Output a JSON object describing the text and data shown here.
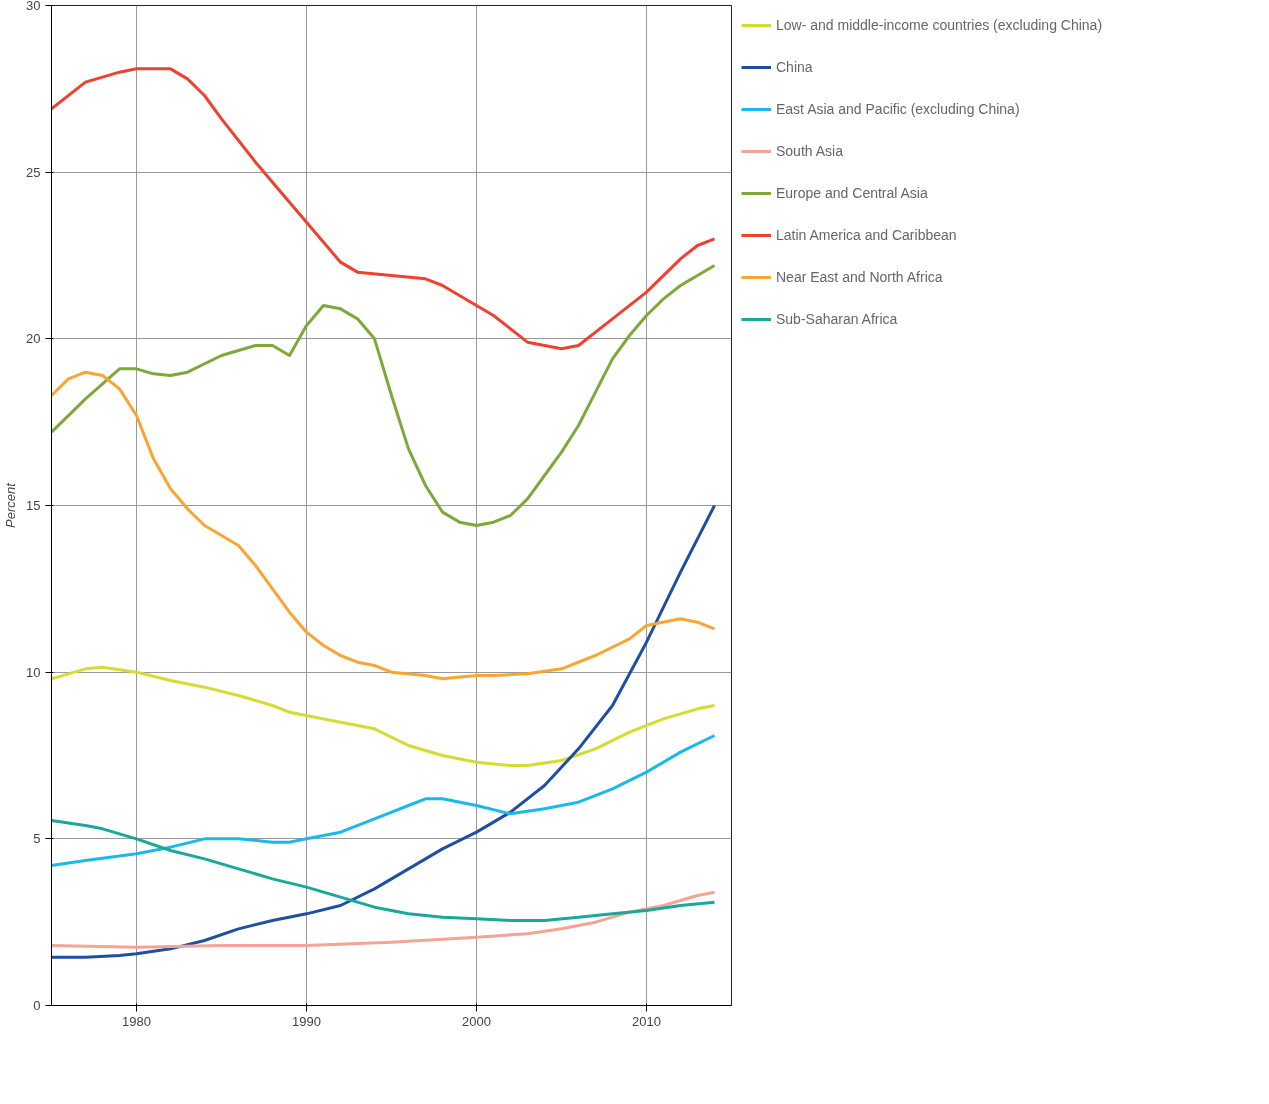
{
  "chart_data": {
    "type": "line",
    "ylabel": "Percent",
    "xlim": [
      1975,
      2015
    ],
    "ylim": [
      0,
      30
    ],
    "xticks": [
      1980,
      1990,
      2000,
      2010
    ],
    "yticks": [
      0,
      5,
      10,
      15,
      20,
      25,
      30
    ],
    "grid": true,
    "legend": "right",
    "line_style": "solid",
    "series": [
      {
        "name": "Low- and middle-income countries (excluding China)",
        "color": "#d4dc32",
        "x": [
          1975,
          1977,
          1978,
          1980,
          1982,
          1984,
          1986,
          1988,
          1989,
          1990,
          1992,
          1994,
          1996,
          1998,
          2000,
          2002,
          2003,
          2005,
          2007,
          2009,
          2011,
          2013,
          2014
        ],
        "values": [
          9.8,
          10.1,
          10.15,
          10.0,
          9.75,
          9.55,
          9.3,
          9.0,
          8.8,
          8.7,
          8.5,
          8.3,
          7.8,
          7.5,
          7.3,
          7.2,
          7.2,
          7.35,
          7.7,
          8.2,
          8.6,
          8.9,
          9.0
        ]
      },
      {
        "name": "China",
        "color": "#1f4fa0",
        "x": [
          1975,
          1977,
          1979,
          1980,
          1982,
          1984,
          1986,
          1988,
          1990,
          1992,
          1994,
          1996,
          1998,
          2000,
          2002,
          2004,
          2006,
          2008,
          2010,
          2012,
          2014
        ],
        "values": [
          1.45,
          1.45,
          1.5,
          1.55,
          1.7,
          1.95,
          2.3,
          2.55,
          2.75,
          3.0,
          3.5,
          4.1,
          4.7,
          5.2,
          5.8,
          6.6,
          7.7,
          9.0,
          10.9,
          13.0,
          15.0
        ]
      },
      {
        "name": "East Asia and Pacific (excluding China)",
        "color": "#1bb8ee",
        "x": [
          1975,
          1977,
          1980,
          1982,
          1984,
          1986,
          1988,
          1989,
          1990,
          1992,
          1994,
          1996,
          1997,
          1998,
          2000,
          2002,
          2004,
          2006,
          2008,
          2010,
          2012,
          2014
        ],
        "values": [
          4.2,
          4.35,
          4.55,
          4.75,
          5.0,
          5.0,
          4.9,
          4.9,
          5.0,
          5.2,
          5.6,
          6.0,
          6.2,
          6.2,
          6.0,
          5.75,
          5.9,
          6.1,
          6.5,
          7.0,
          7.6,
          8.1
        ]
      },
      {
        "name": "South Asia",
        "color": "#f4a494",
        "x": [
          1975,
          1980,
          1985,
          1990,
          1995,
          2000,
          2003,
          2005,
          2007,
          2009,
          2011,
          2013,
          2014
        ],
        "values": [
          1.8,
          1.75,
          1.8,
          1.8,
          1.9,
          2.05,
          2.15,
          2.3,
          2.5,
          2.8,
          3.0,
          3.3,
          3.4
        ]
      },
      {
        "name": "Europe and Central Asia",
        "color": "#7fa83a",
        "x": [
          1975,
          1977,
          1979,
          1980,
          1981,
          1982,
          1983,
          1985,
          1987,
          1988,
          1989,
          1990,
          1991,
          1992,
          1993,
          1994,
          1995,
          1996,
          1997,
          1998,
          1999,
          2000,
          2001,
          2002,
          2003,
          2004,
          2005,
          2006,
          2007,
          2008,
          2009,
          2010,
          2011,
          2012,
          2013,
          2014
        ],
        "values": [
          17.2,
          18.2,
          19.1,
          19.1,
          18.95,
          18.9,
          19.0,
          19.5,
          19.8,
          19.8,
          19.5,
          20.4,
          21.0,
          20.9,
          20.6,
          20.0,
          18.3,
          16.7,
          15.6,
          14.8,
          14.5,
          14.4,
          14.5,
          14.7,
          15.2,
          15.9,
          16.6,
          17.4,
          18.4,
          19.4,
          20.1,
          20.7,
          21.2,
          21.6,
          21.9,
          22.2
        ]
      },
      {
        "name": "Latin America and Caribbean",
        "color": "#ef4130",
        "x": [
          1975,
          1977,
          1979,
          1980,
          1982,
          1983,
          1984,
          1985,
          1987,
          1989,
          1990,
          1992,
          1993,
          1995,
          1997,
          1998,
          2000,
          2001,
          2003,
          2005,
          2006,
          2008,
          2010,
          2012,
          2013,
          2014
        ],
        "values": [
          26.9,
          27.7,
          28.0,
          28.1,
          28.1,
          27.8,
          27.3,
          26.6,
          25.3,
          24.1,
          23.5,
          22.3,
          22.0,
          21.9,
          21.8,
          21.6,
          21.0,
          20.7,
          19.9,
          19.7,
          19.8,
          20.6,
          21.4,
          22.4,
          22.8,
          23.0
        ]
      },
      {
        "name": "Near East and North Africa",
        "color": "#f9a533",
        "x": [
          1975,
          1976,
          1977,
          1978,
          1979,
          1980,
          1981,
          1982,
          1983,
          1984,
          1986,
          1987,
          1988,
          1989,
          1990,
          1991,
          1992,
          1993,
          1994,
          1995,
          1997,
          1998,
          2000,
          2001,
          2003,
          2005,
          2007,
          2009,
          2010,
          2012,
          2013,
          2014
        ],
        "values": [
          18.3,
          18.8,
          19.0,
          18.9,
          18.5,
          17.7,
          16.4,
          15.5,
          14.9,
          14.4,
          13.8,
          13.2,
          12.5,
          11.8,
          11.2,
          10.8,
          10.5,
          10.3,
          10.2,
          10.0,
          9.9,
          9.8,
          9.9,
          9.9,
          9.95,
          10.1,
          10.5,
          11.0,
          11.4,
          11.6,
          11.5,
          11.3
        ]
      },
      {
        "name": "Sub-Saharan Africa",
        "color": "#1aa89a",
        "x": [
          1975,
          1977,
          1978,
          1980,
          1982,
          1984,
          1986,
          1988,
          1990,
          1992,
          1994,
          1996,
          1998,
          2000,
          2002,
          2004,
          2006,
          2008,
          2010,
          2012,
          2014
        ],
        "values": [
          5.55,
          5.4,
          5.3,
          5.0,
          4.65,
          4.4,
          4.1,
          3.8,
          3.55,
          3.25,
          2.95,
          2.75,
          2.65,
          2.6,
          2.55,
          2.55,
          2.65,
          2.75,
          2.85,
          3.0,
          3.1
        ]
      }
    ]
  }
}
